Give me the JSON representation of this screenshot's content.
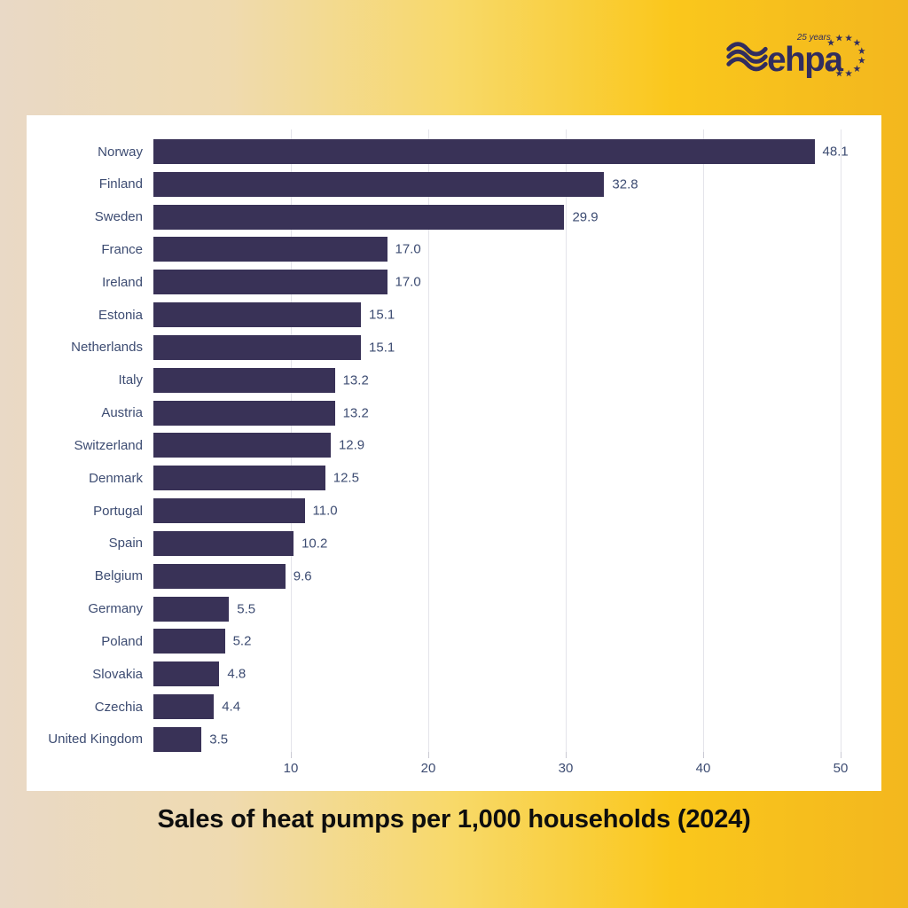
{
  "logo": {
    "brand": "ehpa",
    "badge": "25 years",
    "color": "#312d5e"
  },
  "chart_data": {
    "type": "bar",
    "orientation": "horizontal",
    "title": "Sales of heat pumps per 1,000 households (2024)",
    "categories": [
      "Norway",
      "Finland",
      "Sweden",
      "France",
      "Ireland",
      "Estonia",
      "Netherlands",
      "Italy",
      "Austria",
      "Switzerland",
      "Denmark",
      "Portugal",
      "Spain",
      "Belgium",
      "Germany",
      "Poland",
      "Slovakia",
      "Czechia",
      "United Kingdom"
    ],
    "values": [
      48.1,
      32.8,
      29.9,
      17.0,
      17.0,
      15.1,
      15.1,
      13.2,
      13.2,
      12.9,
      12.5,
      11.0,
      10.2,
      9.6,
      5.5,
      5.2,
      4.8,
      4.4,
      3.5
    ],
    "value_labels": [
      "48.1",
      "32.8",
      "29.9",
      "17.0",
      "17.0",
      "15.1",
      "15.1",
      "13.2",
      "13.2",
      "12.9",
      "12.5",
      "11.0",
      "10.2",
      "9.6",
      "5.5",
      "5.2",
      "4.8",
      "4.4",
      "3.5"
    ],
    "x_ticks": [
      10,
      20,
      30,
      40,
      50
    ],
    "xlim": [
      0,
      51
    ],
    "xlabel": "",
    "ylabel": "",
    "grid": true,
    "legend": false,
    "bar_color": "#393257",
    "label_color": "#3d4c72",
    "background_panel": "#ffffff"
  }
}
